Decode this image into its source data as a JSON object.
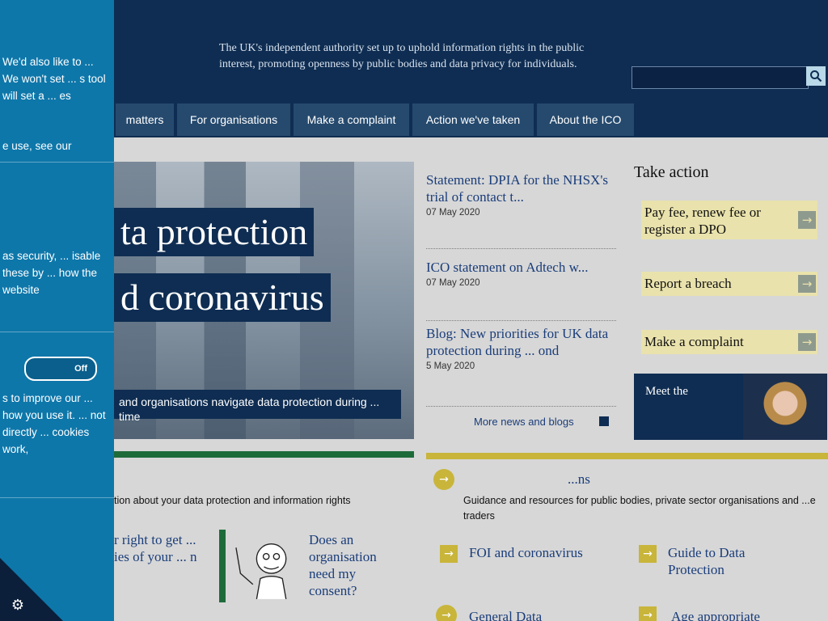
{
  "cookie_panel": {
    "text1": "We'd also like to ... We won't set ... s tool will set a ... es",
    "text2": "e use, see our",
    "heading": "",
    "text3": "as security, ... isable these by ... how the website",
    "toggle_label": "Off",
    "text4": "s to improve our ... how you use it. ... not directly ... cookies work,"
  },
  "header": {
    "tagline": "The UK's independent authority set up to uphold information rights in the public interest, promoting openness by public bodies and data privacy for individuals.",
    "search_placeholder": ""
  },
  "nav": {
    "items": [
      {
        "label": "matters"
      },
      {
        "label": "For organisations"
      },
      {
        "label": "Make a complaint"
      },
      {
        "label": "Action we've taken"
      },
      {
        "label": "About the ICO"
      }
    ]
  },
  "hero": {
    "title_line1": "ta protection",
    "title_line2": "d coronavirus",
    "strip_text": "and organisations navigate data protection during ... time"
  },
  "news": {
    "items": [
      {
        "title": "Statement: DPIA for the NHSX's trial of contact t...",
        "date": "07 May 2020"
      },
      {
        "title": "ICO statement on Adtech w...",
        "date": "07 May 2020"
      },
      {
        "title": "Blog: New priorities for UK data protection during ... ond",
        "date": "5 May 2020"
      }
    ],
    "more_label": "More news and blogs"
  },
  "take_action": {
    "heading": "Take action",
    "cards": [
      {
        "label": "Pay fee, renew fee or register a DPO"
      },
      {
        "label": "Report a breach"
      },
      {
        "label": "Make a complaint"
      }
    ],
    "meet_text": "Meet the"
  },
  "lower_left": {
    "bar_text": "tion about your data protection and information rights",
    "left_text": "r right to get ... ies of your ... n",
    "consent_link": "Does an organisation need my consent?"
  },
  "lower_right": {
    "heading": "...ns",
    "text": "Guidance and resources for public bodies, private sector organisations and ...e traders",
    "link1": "FOI and coronavirus",
    "link2": "Guide to Data Protection",
    "link3": "General Data",
    "link4": "Age appropriate"
  },
  "colors": {
    "navy": "#0f2d52",
    "cookie_blue": "#0e77aa",
    "card_yellow": "#e9e2ac",
    "accent_yellow": "#c8b53a",
    "link_blue": "#1a3d7a"
  }
}
